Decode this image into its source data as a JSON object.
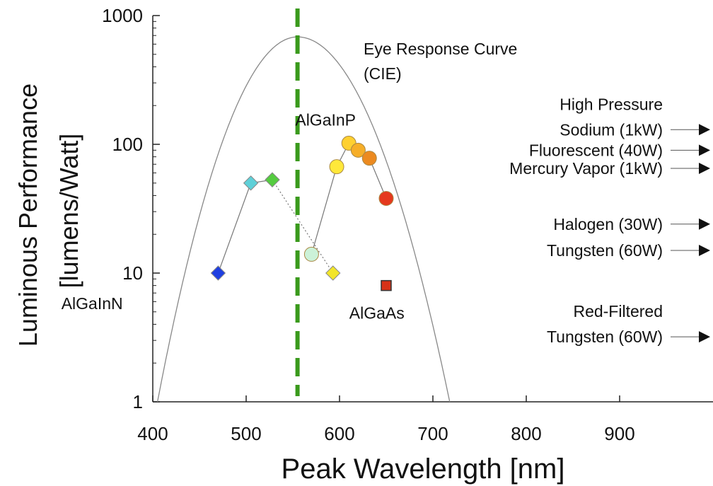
{
  "chart_data": {
    "type": "scatter",
    "title": "",
    "xlabel": "Peak Wavelength [nm]",
    "ylabel_line1": "Luminous Performance",
    "ylabel_line2": "[lumens/Watt]",
    "xlim": [
      400,
      1000
    ],
    "ylim": [
      1,
      1000
    ],
    "y_scale": "log",
    "grid": false,
    "x_ticks": [
      400,
      500,
      600,
      700,
      800,
      900
    ],
    "x_tick_labels": [
      "400",
      "500",
      "600",
      "700",
      "800",
      "900"
    ],
    "y_ticks": [
      1,
      10,
      100,
      1000
    ],
    "y_tick_labels": [
      "1",
      "10",
      "100",
      "1000"
    ],
    "eye_response": {
      "label_line1": "Eye Response Curve",
      "label_line2": "(CIE)",
      "peak_x": 555,
      "peak_y": 683,
      "end_y": 1,
      "left_end_x": 405,
      "right_end_x": 718,
      "color": "#888888"
    },
    "peak_line": {
      "x": 555,
      "color": "#3a9a1c"
    },
    "series": [
      {
        "name": "AlGaInN",
        "marker": "diamond",
        "line_style": "solid",
        "points": [
          {
            "x": 470,
            "y": 10,
            "color": "#1f3fe0"
          },
          {
            "x": 505,
            "y": 50,
            "color": "#5fd0d8"
          },
          {
            "x": 528,
            "y": 53,
            "color": "#55cc40"
          }
        ]
      },
      {
        "name": "",
        "marker": "diamond",
        "line_style": "dotted",
        "points": [
          {
            "x": 528,
            "y": 53,
            "color": "#55cc40"
          },
          {
            "x": 593,
            "y": 10,
            "color": "#f2e52a"
          }
        ]
      },
      {
        "name": "AlGaInP",
        "marker": "circle",
        "line_style": "solid",
        "points": [
          {
            "x": 570,
            "y": 14,
            "color": "#ccf2d8"
          },
          {
            "x": 597,
            "y": 67,
            "color": "#ffe83a"
          },
          {
            "x": 610,
            "y": 102,
            "color": "#ffd030"
          },
          {
            "x": 620,
            "y": 90,
            "color": "#f6ae28"
          },
          {
            "x": 632,
            "y": 78,
            "color": "#ec8a20"
          },
          {
            "x": 650,
            "y": 38,
            "color": "#e5391e"
          }
        ]
      },
      {
        "name": "AlGaAs",
        "marker": "square",
        "line_style": "none",
        "points": [
          {
            "x": 650,
            "y": 8,
            "color": "#d73218"
          }
        ]
      }
    ],
    "series_labels": [
      {
        "text": "AlGaInN",
        "x": 335,
        "y": 5.8
      },
      {
        "text": "AlGaInP",
        "x": 585,
        "y": 155
      },
      {
        "text": "AlGaAs",
        "x": 640,
        "y": 4.9
      }
    ],
    "reference_lamps": [
      {
        "lines": [
          "High Pressure",
          "Sodium (1kW)"
        ],
        "y": 130
      },
      {
        "lines": [
          "Fluorescent (40W)"
        ],
        "y": 90
      },
      {
        "lines": [
          "Mercury Vapor (1kW)"
        ],
        "y": 65
      },
      {
        "lines": [
          "Halogen (30W)"
        ],
        "y": 24
      },
      {
        "lines": [
          "Tungsten (60W)"
        ],
        "y": 15
      },
      {
        "lines": [
          "Red-Filtered",
          "Tungsten (60W)"
        ],
        "y": 3.2
      }
    ]
  }
}
